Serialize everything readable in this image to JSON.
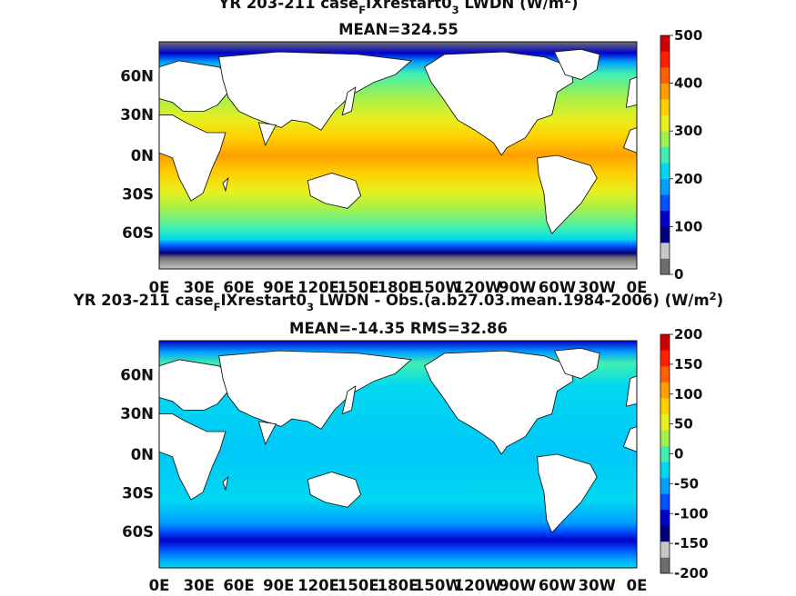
{
  "chart_data": [
    {
      "type": "heatmap",
      "title_pre": "YR 203-211 case",
      "title_sub1": "F",
      "title_mid": "IXrestart0",
      "title_sub2": "3",
      "title_post": " LWDN (W/m",
      "title_sup": "2",
      "title_close": ")",
      "subtitle": "MEAN=324.55",
      "x_ticks": [
        "0E",
        "30E",
        "60E",
        "90E",
        "120E",
        "150E",
        "180E",
        "150W",
        "120W",
        "90W",
        "60W",
        "30W",
        "0E"
      ],
      "y_ticks": [
        "60N",
        "30N",
        "0N",
        "30S",
        "60S"
      ],
      "colorbar_ticks": [
        "500",
        "400",
        "300",
        "200",
        "100",
        "0"
      ],
      "colorbar_range": [
        0,
        500
      ],
      "mean": 324.55
    },
    {
      "type": "heatmap",
      "title_pre": "YR 203-211 case",
      "title_sub1": "F",
      "title_mid": "IXrestart0",
      "title_sub2": "3",
      "title_post": " LWDN - Obs.(a.b27.03.mean.1984-2006) (W/m",
      "title_sup": "2",
      "title_close": ")",
      "subtitle": "MEAN=-14.35 RMS=32.86",
      "x_ticks": [
        "0E",
        "30E",
        "60E",
        "90E",
        "120E",
        "150E",
        "180E",
        "150W",
        "120W",
        "90W",
        "60W",
        "30W",
        "0E"
      ],
      "y_ticks": [
        "60N",
        "30N",
        "0N",
        "30S",
        "60S"
      ],
      "colorbar_ticks": [
        "200",
        "150",
        "100",
        "50",
        "0",
        "-50",
        "-100",
        "-150",
        "-200"
      ],
      "colorbar_range": [
        -200,
        200
      ],
      "mean": -14.35,
      "rms": 32.86
    }
  ],
  "colormap": [
    "#6e6e6e",
    "#c8c8c8",
    "#00007a",
    "#0000cc",
    "#0050ff",
    "#00a0ff",
    "#00d8f0",
    "#40f0b0",
    "#a0f050",
    "#e8f020",
    "#ffd000",
    "#ffa000",
    "#ff6000",
    "#ff2000",
    "#d00000"
  ],
  "land_color": "#ffffff"
}
